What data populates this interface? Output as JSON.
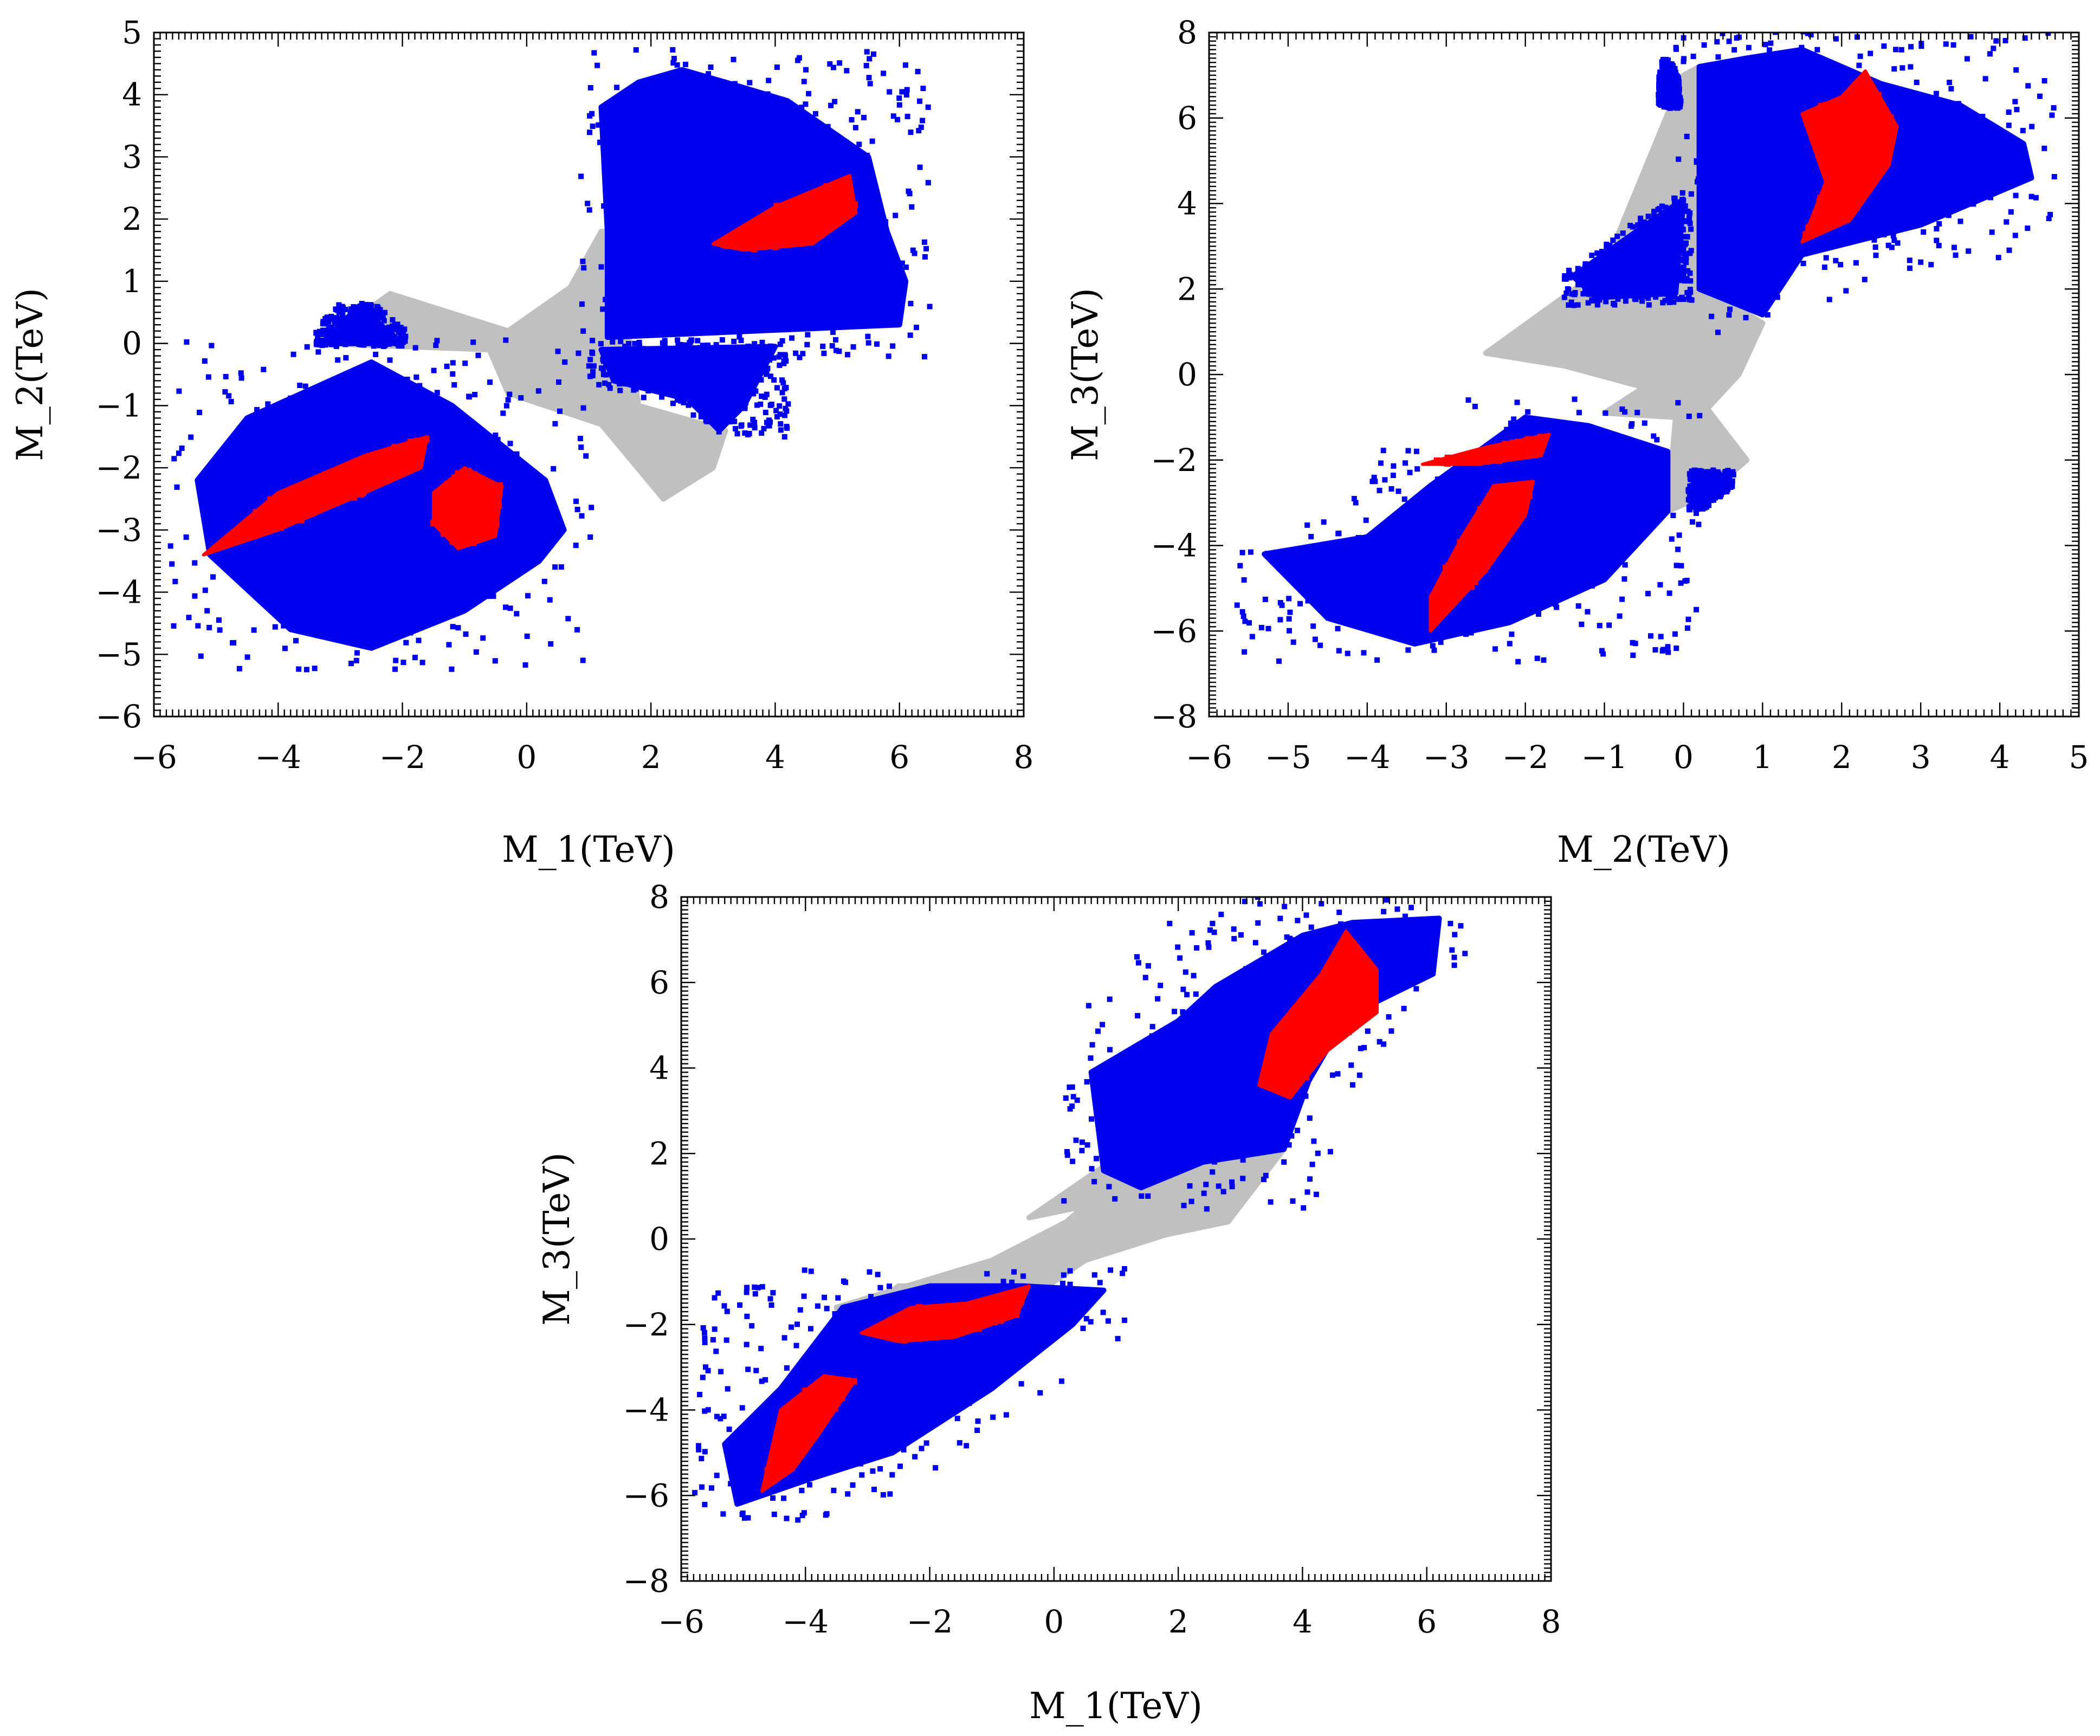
{
  "chart_data": [
    {
      "type": "scatter",
      "id": "m1-m2",
      "xlabel": "M_1(TeV)",
      "ylabel": "M_2(TeV)",
      "xlim": [
        -6,
        8
      ],
      "ylim": [
        -6,
        5
      ],
      "xticks": [
        -6,
        -4,
        -2,
        0,
        2,
        4,
        6,
        8
      ],
      "yticks": [
        -6,
        -5,
        -4,
        -3,
        -2,
        -1,
        0,
        1,
        2,
        3,
        4,
        5
      ],
      "colors": {
        "grey": "#c0c0c0",
        "blue": "#0000ee",
        "red": "#ff0000"
      },
      "series": [
        {
          "name": "grey",
          "regions": [
            [
              [
                -3.3,
                0.0
              ],
              [
                -2.2,
                0.8
              ],
              [
                -0.3,
                0.2
              ],
              [
                0.7,
                0.9
              ],
              [
                1.2,
                1.8
              ],
              [
                1.4,
                1.8
              ],
              [
                1.8,
                -1.0
              ],
              [
                3.2,
                -1.4
              ],
              [
                3.0,
                -2.0
              ],
              [
                2.2,
                -2.5
              ],
              [
                1.2,
                -1.3
              ],
              [
                -0.3,
                -0.8
              ],
              [
                -0.6,
                -0.1
              ]
            ]
          ]
        },
        {
          "name": "blue",
          "regions": [
            [
              [
                -5.3,
                -2.2
              ],
              [
                -4.5,
                -1.2
              ],
              [
                -2.5,
                -0.3
              ],
              [
                -1.2,
                -1.0
              ],
              [
                0.3,
                -2.2
              ],
              [
                0.6,
                -3.0
              ],
              [
                0.2,
                -3.5
              ],
              [
                -1.0,
                -4.3
              ],
              [
                -2.5,
                -4.9
              ],
              [
                -3.8,
                -4.6
              ],
              [
                -5.1,
                -3.4
              ]
            ],
            [
              [
                -3.3,
                0.0
              ],
              [
                -2.7,
                0.6
              ],
              [
                -2.0,
                0.0
              ]
            ],
            [
              [
                1.3,
                0.1
              ],
              [
                1.3,
                1.8
              ],
              [
                1.2,
                3.8
              ],
              [
                1.8,
                4.2
              ],
              [
                2.5,
                4.4
              ],
              [
                3.2,
                4.2
              ],
              [
                4.2,
                3.9
              ],
              [
                5.5,
                3.0
              ],
              [
                5.8,
                1.8
              ],
              [
                6.1,
                1.0
              ],
              [
                6.0,
                0.3
              ]
            ],
            [
              [
                1.2,
                -0.1
              ],
              [
                4.0,
                -0.05
              ],
              [
                3.5,
                -1.0
              ],
              [
                3.1,
                -1.4
              ],
              [
                2.6,
                -0.9
              ],
              [
                1.4,
                -0.6
              ]
            ]
          ]
        },
        {
          "name": "red",
          "regions": [
            [
              [
                -5.2,
                -3.4
              ],
              [
                -4.0,
                -2.4
              ],
              [
                -2.6,
                -1.8
              ],
              [
                -1.6,
                -1.5
              ],
              [
                -1.7,
                -2.0
              ],
              [
                -2.6,
                -2.4
              ],
              [
                -4.0,
                -3.0
              ]
            ],
            [
              [
                -1.5,
                -2.4
              ],
              [
                -1.0,
                -2.0
              ],
              [
                -0.4,
                -2.3
              ],
              [
                -0.5,
                -3.1
              ],
              [
                -1.1,
                -3.3
              ],
              [
                -1.5,
                -2.9
              ]
            ],
            [
              [
                3.0,
                1.6
              ],
              [
                4.0,
                2.2
              ],
              [
                5.2,
                2.7
              ],
              [
                5.3,
                2.1
              ],
              [
                4.6,
                1.6
              ],
              [
                3.5,
                1.5
              ]
            ]
          ]
        }
      ]
    },
    {
      "type": "scatter",
      "id": "m2-m3",
      "xlabel": "M_2(TeV)",
      "ylabel": "M_3(TeV)",
      "xlim": [
        -6,
        5
      ],
      "ylim": [
        -8,
        8
      ],
      "xticks": [
        -6,
        -5,
        -4,
        -3,
        -2,
        -1,
        0,
        1,
        2,
        3,
        4,
        5
      ],
      "yticks": [
        -8,
        -6,
        -4,
        -2,
        0,
        2,
        4,
        6,
        8
      ],
      "colors": {
        "grey": "#c0c0c0",
        "blue": "#0000ee",
        "red": "#ff0000"
      },
      "series": [
        {
          "name": "grey",
          "regions": [
            [
              [
                -2.5,
                0.5
              ],
              [
                -1.0,
                2.5
              ],
              [
                0.0,
                7.0
              ],
              [
                0.2,
                7.2
              ],
              [
                0.3,
                2.0
              ],
              [
                1.0,
                1.2
              ],
              [
                0.7,
                0.0
              ],
              [
                0.3,
                -0.8
              ],
              [
                0.8,
                -2.0
              ],
              [
                0.3,
                -2.8
              ],
              [
                -0.2,
                -3.2
              ],
              [
                -0.1,
                -1.0
              ],
              [
                -1.0,
                -0.9
              ],
              [
                -0.5,
                -0.3
              ],
              [
                -1.5,
                0.2
              ]
            ]
          ]
        },
        {
          "name": "blue",
          "regions": [
            [
              [
                -4.0,
                -3.8
              ],
              [
                -3.2,
                -2.6
              ],
              [
                -2.0,
                -1.0
              ],
              [
                -1.2,
                -1.2
              ],
              [
                -0.2,
                -1.8
              ],
              [
                -0.2,
                -3.2
              ],
              [
                -1.0,
                -4.8
              ],
              [
                -2.2,
                -5.8
              ],
              [
                -3.4,
                -6.3
              ],
              [
                -4.5,
                -5.7
              ],
              [
                -5.3,
                -4.2
              ]
            ],
            [
              [
                0.1,
                -2.3
              ],
              [
                0.6,
                -2.5
              ],
              [
                0.2,
                -3.1
              ]
            ],
            [
              [
                -1.4,
                2.3
              ],
              [
                -0.4,
                3.6
              ],
              [
                0.0,
                4.1
              ],
              [
                -0.1,
                1.9
              ],
              [
                -1.1,
                1.8
              ]
            ],
            [
              [
                0.2,
                2.0
              ],
              [
                0.2,
                7.2
              ],
              [
                0.8,
                7.4
              ],
              [
                1.5,
                7.6
              ],
              [
                2.5,
                6.8
              ],
              [
                3.5,
                6.3
              ],
              [
                4.3,
                5.4
              ],
              [
                4.4,
                4.6
              ],
              [
                3.0,
                3.5
              ],
              [
                1.5,
                2.8
              ],
              [
                1.0,
                1.4
              ]
            ],
            [
              [
                -0.3,
                6.3
              ],
              [
                -0.2,
                7.3
              ],
              [
                -0.05,
                6.5
              ]
            ]
          ]
        },
        {
          "name": "red",
          "regions": [
            [
              [
                -3.2,
                -6.0
              ],
              [
                -2.5,
                -4.6
              ],
              [
                -2.0,
                -3.3
              ],
              [
                -1.9,
                -2.5
              ],
              [
                -2.4,
                -2.6
              ],
              [
                -2.8,
                -3.8
              ],
              [
                -3.2,
                -5.2
              ]
            ],
            [
              [
                -3.3,
                -2.1
              ],
              [
                -2.5,
                -1.7
              ],
              [
                -1.7,
                -1.4
              ],
              [
                -1.8,
                -1.9
              ],
              [
                -2.6,
                -2.1
              ]
            ],
            [
              [
                1.5,
                3.1
              ],
              [
                1.8,
                4.5
              ],
              [
                1.5,
                6.1
              ],
              [
                2.0,
                6.5
              ],
              [
                2.3,
                7.1
              ],
              [
                2.7,
                5.8
              ],
              [
                2.6,
                4.9
              ],
              [
                2.1,
                3.6
              ]
            ]
          ]
        }
      ]
    },
    {
      "type": "scatter",
      "id": "m1-m3",
      "xlabel": "M_1(TeV)",
      "ylabel": "M_3(TeV)",
      "xlim": [
        -6,
        8
      ],
      "ylim": [
        -8,
        8
      ],
      "xticks": [
        -6,
        -4,
        -2,
        0,
        2,
        4,
        6,
        8
      ],
      "yticks": [
        -8,
        -6,
        -4,
        -2,
        0,
        2,
        4,
        6,
        8
      ],
      "colors": {
        "grey": "#c0c0c0",
        "blue": "#0000ee",
        "red": "#ff0000"
      },
      "series": [
        {
          "name": "grey",
          "regions": [
            [
              [
                -3.5,
                -1.6
              ],
              [
                -1.0,
                -0.5
              ],
              [
                0.2,
                0.4
              ],
              [
                0.9,
                1.3
              ],
              [
                1.8,
                2.6
              ],
              [
                3.7,
                2.1
              ],
              [
                2.8,
                0.4
              ],
              [
                1.8,
                0.1
              ],
              [
                0.5,
                -0.5
              ],
              [
                -0.2,
                -1.2
              ],
              [
                -1.5,
                -1.1
              ],
              [
                -2.5,
                -1.1
              ],
              [
                -3.4,
                -2.0
              ]
            ],
            [
              [
                -0.4,
                0.5
              ],
              [
                0.5,
                1.4
              ],
              [
                1.2,
                2.1
              ],
              [
                0.6,
                0.8
              ]
            ]
          ]
        },
        {
          "name": "blue",
          "regions": [
            [
              [
                -5.3,
                -4.8
              ],
              [
                -4.4,
                -3.5
              ],
              [
                -3.4,
                -1.6
              ],
              [
                -2.0,
                -1.1
              ],
              [
                -0.5,
                -1.1
              ],
              [
                0.8,
                -1.2
              ],
              [
                0.3,
                -2.0
              ],
              [
                -1.0,
                -3.5
              ],
              [
                -2.6,
                -5.0
              ],
              [
                -3.9,
                -5.6
              ],
              [
                -5.1,
                -6.2
              ]
            ],
            [
              [
                0.6,
                3.9
              ],
              [
                2.0,
                5.1
              ],
              [
                2.6,
                5.9
              ],
              [
                4.0,
                7.1
              ],
              [
                4.8,
                7.4
              ],
              [
                6.2,
                7.5
              ],
              [
                6.1,
                6.2
              ],
              [
                4.7,
                5.2
              ],
              [
                4.1,
                3.7
              ],
              [
                3.7,
                2.1
              ],
              [
                2.4,
                1.8
              ],
              [
                1.4,
                1.2
              ],
              [
                0.8,
                1.6
              ]
            ]
          ]
        },
        {
          "name": "red",
          "regions": [
            [
              [
                -4.7,
                -5.9
              ],
              [
                -4.4,
                -4.0
              ],
              [
                -3.7,
                -3.2
              ],
              [
                -3.2,
                -3.3
              ],
              [
                -3.8,
                -4.6
              ],
              [
                -4.2,
                -5.4
              ]
            ],
            [
              [
                -3.1,
                -2.2
              ],
              [
                -2.3,
                -1.6
              ],
              [
                -1.4,
                -1.5
              ],
              [
                -0.4,
                -1.1
              ],
              [
                -0.6,
                -1.8
              ],
              [
                -1.6,
                -2.3
              ],
              [
                -2.5,
                -2.4
              ]
            ],
            [
              [
                3.3,
                3.6
              ],
              [
                3.5,
                4.8
              ],
              [
                4.3,
                6.2
              ],
              [
                4.7,
                7.2
              ],
              [
                5.2,
                6.3
              ],
              [
                5.2,
                5.3
              ],
              [
                4.4,
                4.4
              ],
              [
                3.8,
                3.3
              ]
            ]
          ]
        }
      ]
    }
  ]
}
